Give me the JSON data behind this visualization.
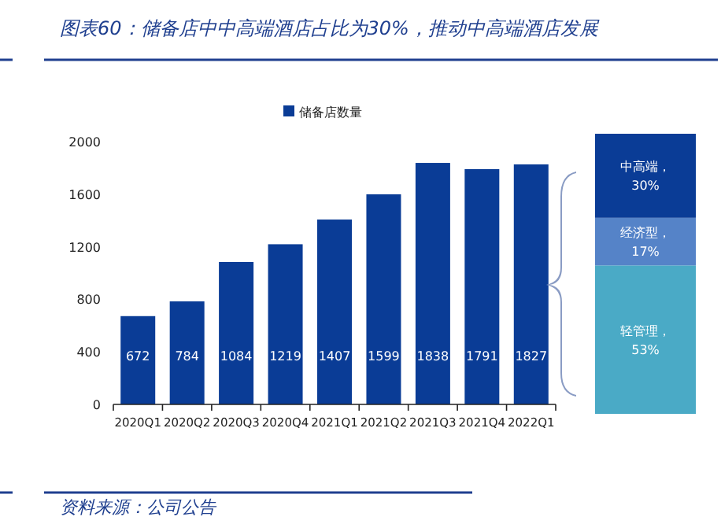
{
  "chart_data": [
    {
      "type": "bar",
      "title": "图表60：储备店中中高端酒店占比为30%，推动中高端酒店发展",
      "categories": [
        "2020Q1",
        "2020Q2",
        "2020Q3",
        "2020Q4",
        "2021Q1",
        "2021Q2",
        "2021Q3",
        "2021Q4",
        "2022Q1"
      ],
      "series": [
        {
          "name": "储备店数量",
          "color": "#0a3c96",
          "values": [
            672,
            784,
            1084,
            1219,
            1407,
            1599,
            1838,
            1791,
            1827
          ]
        }
      ],
      "ylim": [
        0,
        2000
      ],
      "yticks": [
        0,
        400,
        800,
        1200,
        1600,
        2000
      ],
      "data_labels": true,
      "legend": "top",
      "grid": false,
      "annotations": [
        "资料来源：公司公告"
      ]
    },
    {
      "type": "bar",
      "stacked": true,
      "categories": [
        null
      ],
      "ylim": [
        0,
        100
      ],
      "tick_labels": false,
      "series": [
        {
          "name": "轻管理，",
          "color": "#4aaac6",
          "values": [
            53
          ],
          "value_labels": [
            "53%"
          ]
        },
        {
          "name": "经济型，",
          "color": "#5583c8",
          "values": [
            17
          ],
          "value_labels": [
            "17%"
          ]
        },
        {
          "name": "中高端，",
          "color": "#0a3c96",
          "values": [
            30
          ],
          "value_labels": [
            "30%"
          ]
        }
      ]
    }
  ]
}
